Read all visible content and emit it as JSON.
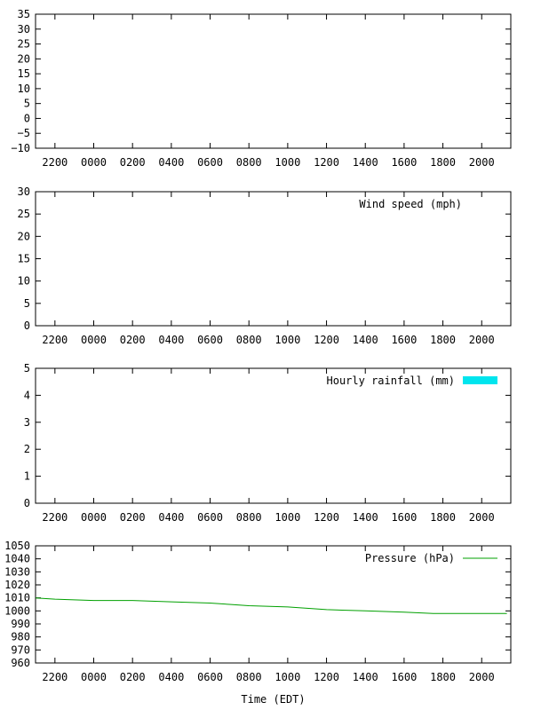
{
  "x_ticks": [
    "2200",
    "0000",
    "0200",
    "0400",
    "0600",
    "0800",
    "1000",
    "1200",
    "1400",
    "1600",
    "1800",
    "2000"
  ],
  "x_label": "Time (EDT)",
  "colors": {
    "rainfall": "#00e5ee",
    "pressure": "#00a000"
  },
  "chart_data": [
    {
      "type": "line",
      "ylim": [
        -10,
        35
      ],
      "yticks": [
        -10,
        -5,
        0,
        5,
        10,
        15,
        20,
        25,
        30,
        35
      ],
      "series": []
    },
    {
      "type": "line",
      "ylim": [
        0,
        30
      ],
      "yticks": [
        0,
        5,
        10,
        15,
        20,
        25,
        30
      ],
      "legend": "Wind speed (mph)",
      "legend_position": "top-right",
      "series": []
    },
    {
      "type": "bar",
      "ylim": [
        0,
        5
      ],
      "yticks": [
        0,
        1,
        2,
        3,
        4,
        5
      ],
      "legend": "Hourly rainfall (mm)",
      "legend_position": "top-right",
      "series": []
    },
    {
      "type": "line",
      "ylim": [
        960,
        1050
      ],
      "yticks": [
        960,
        970,
        980,
        990,
        1000,
        1010,
        1020,
        1030,
        1040,
        1050
      ],
      "legend": "Pressure (hPa)",
      "legend_position": "top-right",
      "series": [
        {
          "name": "Pressure (hPa)",
          "x": [
            21.0,
            22.0,
            24.0,
            26.0,
            28.0,
            30.0,
            31.0,
            32.0,
            34.0,
            36.0,
            38.0,
            40.0,
            41.5,
            42.0,
            44.0,
            45.3
          ],
          "y": [
            1010,
            1009,
            1008,
            1008,
            1007,
            1006,
            1005,
            1004,
            1003,
            1001,
            1000,
            999,
            998,
            998,
            998,
            998
          ]
        }
      ]
    }
  ]
}
